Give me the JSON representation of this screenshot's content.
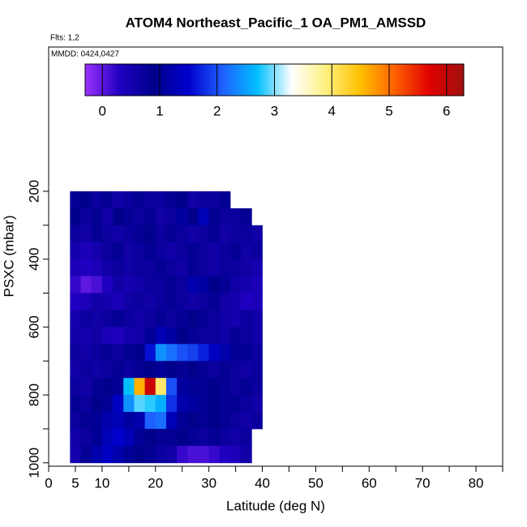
{
  "chart_data": {
    "type": "heatmap",
    "title": "ATOM4 Northeast_Pacific_1 OA_PM1_AMSSD",
    "subtitle": "Flts: 1,2",
    "annotation": "MMDD: 0424,0427",
    "x_label": "Latitude (deg N)",
    "y_label": "PSXC (mbar)",
    "xlim": [
      0,
      85
    ],
    "ylim": [
      1010,
      -225
    ],
    "xticks": [
      0,
      5,
      10,
      20,
      30,
      40,
      50,
      60,
      70,
      80
    ],
    "x_minor_ticks": [
      15,
      25,
      35,
      45,
      55,
      65,
      75,
      85
    ],
    "yticks": [
      200,
      400,
      600,
      800,
      1000
    ],
    "y_minor_ticks": [
      300,
      500,
      700,
      900
    ],
    "zlim": [
      -0.3,
      6.3
    ],
    "colorbar_ticks": [
      0,
      1,
      2,
      3,
      4,
      5,
      6
    ],
    "colorscale": [
      "#9b30ff",
      "#2000c0",
      "#00008b",
      "#0000cd",
      "#1e60ff",
      "#00bfff",
      "#ffffff",
      "#fff080",
      "#ffc000",
      "#ff6000",
      "#e00000",
      "#a01010"
    ],
    "x_bins": [
      4,
      6,
      8,
      10,
      12,
      14,
      16,
      18,
      20,
      22,
      24,
      26,
      28,
      30,
      32,
      34,
      36,
      38,
      40
    ],
    "y_bins": [
      200,
      250,
      300,
      350,
      400,
      450,
      500,
      550,
      600,
      650,
      700,
      750,
      800,
      850,
      900,
      950,
      1000
    ],
    "values": [
      [
        0.8,
        0.9,
        0.7,
        0.8,
        0.6,
        0.7,
        0.8,
        0.7,
        0.7,
        0.8,
        0.9,
        0.6,
        0.7,
        0.7,
        0.8,
        null,
        null,
        null
      ],
      [
        0.9,
        0.7,
        0.8,
        0.6,
        0.9,
        0.8,
        0.7,
        0.8,
        0.6,
        0.7,
        1.1,
        0.9,
        1.3,
        0.8,
        0.7,
        0.7,
        0.8,
        null
      ],
      [
        0.7,
        0.6,
        0.8,
        0.7,
        0.6,
        0.7,
        0.8,
        0.9,
        0.7,
        0.8,
        0.7,
        0.6,
        0.7,
        0.8,
        0.6,
        0.7,
        0.7,
        0.6
      ],
      [
        0.5,
        0.4,
        0.5,
        0.7,
        0.8,
        0.6,
        0.7,
        0.8,
        0.7,
        0.6,
        0.7,
        0.8,
        0.7,
        0.6,
        0.7,
        0.8,
        0.6,
        0.7
      ],
      [
        0.4,
        0.3,
        0.4,
        0.6,
        0.7,
        0.6,
        0.7,
        0.7,
        0.8,
        0.7,
        0.6,
        0.8,
        0.7,
        0.6,
        0.7,
        0.7,
        0.6,
        0.5
      ],
      [
        0.2,
        0.0,
        0.1,
        0.3,
        0.6,
        0.5,
        0.6,
        0.7,
        0.7,
        0.8,
        0.7,
        1.2,
        1.1,
        0.9,
        0.8,
        0.6,
        0.5,
        0.4
      ],
      [
        0.3,
        0.4,
        0.6,
        0.5,
        0.4,
        0.6,
        0.7,
        0.6,
        0.7,
        0.8,
        0.7,
        0.6,
        0.7,
        0.8,
        0.6,
        0.5,
        0.3,
        0.4
      ],
      [
        0.5,
        0.7,
        0.6,
        0.7,
        0.8,
        0.7,
        0.6,
        0.7,
        0.8,
        0.7,
        0.8,
        0.9,
        0.8,
        0.7,
        0.6,
        0.5,
        0.7,
        0.6
      ],
      [
        0.6,
        0.5,
        0.6,
        0.4,
        0.3,
        0.5,
        0.6,
        1.0,
        1.3,
        1.1,
        0.9,
        0.8,
        0.7,
        0.7,
        0.6,
        0.8,
        0.7,
        0.6
      ],
      [
        0.7,
        0.6,
        0.7,
        0.8,
        0.7,
        0.8,
        0.9,
        1.6,
        2.4,
        2.2,
        2.0,
        1.9,
        1.7,
        1.4,
        1.2,
        1.0,
        0.8,
        0.7
      ],
      [
        0.6,
        0.7,
        0.6,
        0.7,
        0.8,
        0.7,
        0.8,
        0.9,
        1.0,
        0.9,
        0.8,
        0.9,
        0.8,
        0.7,
        0.8,
        0.7,
        0.6,
        0.7
      ],
      [
        0.7,
        0.6,
        0.8,
        0.9,
        1.0,
        2.7,
        4.6,
        5.9,
        4.0,
        2.0,
        1.1,
        1.0,
        1.0,
        0.9,
        0.8,
        0.7,
        0.8,
        0.7
      ],
      [
        0.8,
        0.7,
        0.9,
        1.0,
        1.4,
        2.4,
        2.9,
        2.8,
        2.6,
        1.8,
        1.2,
        1.1,
        1.0,
        0.9,
        0.8,
        0.8,
        0.7,
        0.6
      ],
      [
        0.7,
        0.8,
        1.0,
        1.2,
        1.3,
        1.1,
        1.2,
        2.1,
        2.2,
        1.3,
        1.0,
        0.9,
        0.8,
        0.9,
        0.8,
        0.7,
        0.6,
        0.7
      ],
      [
        0.6,
        0.7,
        1.0,
        1.3,
        1.5,
        1.3,
        1.0,
        0.9,
        0.8,
        0.8,
        0.9,
        0.8,
        0.7,
        0.8,
        0.7,
        0.6,
        0.7,
        null
      ],
      [
        0.5,
        0.8,
        1.2,
        1.4,
        1.2,
        1.0,
        0.9,
        0.8,
        0.7,
        0.6,
        0.2,
        0.1,
        0.1,
        0.2,
        0.3,
        0.4,
        0.6,
        null
      ]
    ]
  }
}
